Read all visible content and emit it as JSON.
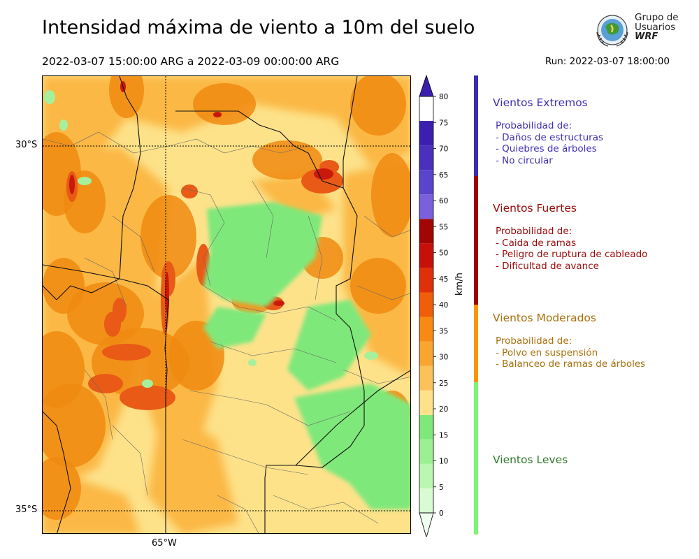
{
  "header": {
    "title": "Intensidad máxima de viento a 10m del suelo",
    "period": "2022-03-07 15:00:00 ARG  a  2022-03-09 00:00:00 ARG",
    "run": "Run: 2022-03-07 18:00:00"
  },
  "logo": {
    "line1": "Grupo de",
    "line2": "Usuarios",
    "line3": "WRF"
  },
  "map": {
    "lat_labels": [
      "30°S",
      "35°S"
    ],
    "lon_labels": [
      "65°W"
    ],
    "fill_colors": {
      "base": "#fde28a",
      "moderate": "#fbb845",
      "strong": "#f08a10",
      "red": "#e85a16",
      "darkred": "#c8190b",
      "green": "#7fe87a",
      "lightgreen": "#a6f09d"
    }
  },
  "colorbar": {
    "units": "km/h",
    "ticks": [
      "0",
      "5",
      "10",
      "15",
      "20",
      "25",
      "30",
      "35",
      "40",
      "45",
      "50",
      "55",
      "60",
      "65",
      "70",
      "75",
      "80"
    ],
    "colors": [
      "#f0fff0",
      "#d8fcd2",
      "#baf7b0",
      "#9cf091",
      "#7fe87a",
      "#fde28a",
      "#fbc25a",
      "#f9a52f",
      "#f68a12",
      "#f05e0a",
      "#e0300a",
      "#c8100a",
      "#a20604",
      "#7a60dc",
      "#5a44cc",
      "#4a30bc",
      "#3d1fb0"
    ]
  },
  "categories": [
    {
      "title": "Vientos Extremos",
      "color": "#3d2fb5",
      "band_color": "#3a2db2",
      "lines": [
        "Probabilidad de:",
        "- Daños de estructuras",
        "- Quiebres de árboles",
        "- No circular"
      ]
    },
    {
      "title": "Vientos Fuertes",
      "color": "#9a0a0a",
      "band_color": "#a00000",
      "lines": [
        "Probabilidad de:",
        "- Caida de ramas",
        "- Peligro de ruptura de cableado",
        "- Dificultad de avance"
      ]
    },
    {
      "title": "Vientos Moderados",
      "color": "#a8710e",
      "band_color": "#f99700",
      "lines": [
        "Probabilidad de:",
        "- Polvo en suspensión",
        "- Balanceo de ramas de árboles"
      ]
    },
    {
      "title": "Vientos Leves",
      "color": "#2e7b2b",
      "band_color": "#7cf473",
      "lines": []
    }
  ]
}
